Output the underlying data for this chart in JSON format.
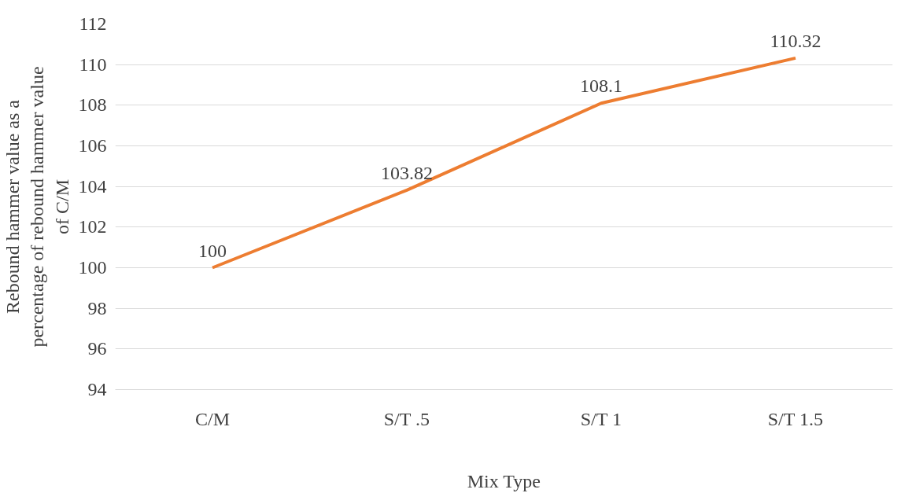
{
  "chart_data": {
    "type": "line",
    "xlabel": "Mix Type",
    "ylabel": "Rebound hammer value as a percentage of rebound hammer value of C/M",
    "categories": [
      "C/M",
      "S/T .5",
      "S/T 1",
      "S/T 1.5"
    ],
    "series": [
      {
        "color": "#ed7d31",
        "values": [
          100,
          103.82,
          108.1,
          110.32
        ]
      }
    ],
    "ylim": [
      94,
      112
    ],
    "yticks": [
      94,
      96,
      98,
      100,
      102,
      104,
      106,
      108,
      110,
      112
    ],
    "grid": "y",
    "data_labels": true,
    "marker": "none",
    "line_style": "solid"
  }
}
